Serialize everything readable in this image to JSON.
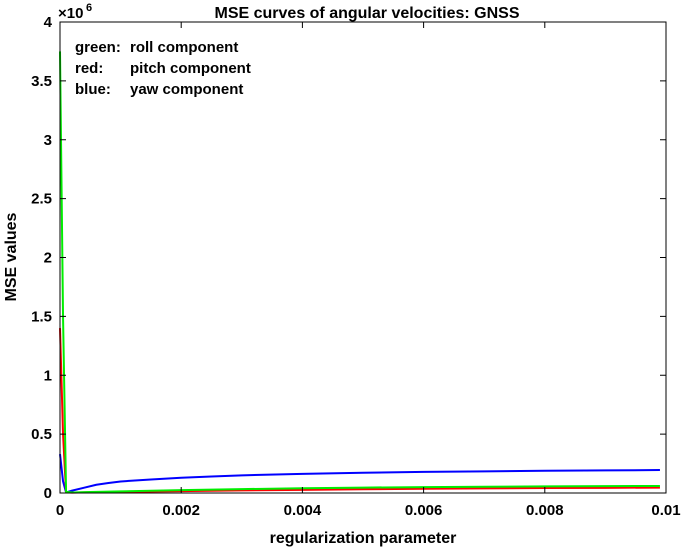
{
  "chart_data": {
    "type": "line",
    "title": "MSE curves of angular velocities: GNSS",
    "xlabel": "regularization parameter",
    "ylabel": "MSE values",
    "xlim": [
      0,
      0.01
    ],
    "ylim": [
      0,
      4000000
    ],
    "y_exponent_label": "×10",
    "y_exponent_power": "6",
    "grid": false,
    "xticks": [
      {
        "value": 0,
        "label": "0"
      },
      {
        "value": 0.002,
        "label": "0.002"
      },
      {
        "value": 0.004,
        "label": "0.004"
      },
      {
        "value": 0.006,
        "label": "0.006"
      },
      {
        "value": 0.008,
        "label": "0.008"
      },
      {
        "value": 0.01,
        "label": "0.01"
      }
    ],
    "yticks": [
      {
        "value": 0,
        "label": "0"
      },
      {
        "value": 500000,
        "label": "0.5"
      },
      {
        "value": 1000000,
        "label": "1"
      },
      {
        "value": 1500000,
        "label": "1.5"
      },
      {
        "value": 2000000,
        "label": "2"
      },
      {
        "value": 2500000,
        "label": "2.5"
      },
      {
        "value": 3000000,
        "label": "3"
      },
      {
        "value": 3500000,
        "label": "3.5"
      },
      {
        "value": 4000000,
        "label": "4"
      }
    ],
    "annotations": [
      {
        "name": "green",
        "prefix": "green:",
        "text": "roll component"
      },
      {
        "name": "red",
        "prefix": "red:",
        "text": "pitch component"
      },
      {
        "name": "blue",
        "prefix": "blue:",
        "text": "yaw component"
      }
    ],
    "series": [
      {
        "name": "yaw component",
        "color": "#0000ff",
        "x": [
          0,
          5e-05,
          0.0001,
          0.0002,
          0.0004,
          0.0006,
          0.0008,
          0.001,
          0.0015,
          0.002,
          0.0025,
          0.003,
          0.004,
          0.005,
          0.006,
          0.007,
          0.008,
          0.009,
          0.0099
        ],
        "y": [
          330000,
          100000,
          5000,
          20000,
          45000,
          70000,
          85000,
          98000,
          115000,
          130000,
          140000,
          150000,
          162000,
          172000,
          179000,
          184000,
          189000,
          192000,
          195000
        ]
      },
      {
        "name": "pitch component",
        "color": "#ff0000",
        "x": [
          0,
          5e-05,
          0.0001,
          0.0002,
          0.0005,
          0.001,
          0.002,
          0.003,
          0.004,
          0.005,
          0.006,
          0.007,
          0.008,
          0.009,
          0.0099
        ],
        "y": [
          1400000,
          500000,
          5000,
          3000,
          6000,
          10000,
          16000,
          22000,
          27000,
          32000,
          36000,
          39000,
          42000,
          44000,
          46000
        ]
      },
      {
        "name": "roll component",
        "color": "#00ee00",
        "x": [
          0,
          5e-05,
          0.0001,
          0.0002,
          0.0005,
          0.001,
          0.002,
          0.003,
          0.004,
          0.005,
          0.006,
          0.007,
          0.008,
          0.009,
          0.0099
        ],
        "y": [
          3750000,
          1500000,
          10000,
          4000,
          8000,
          14000,
          24000,
          33000,
          40000,
          46000,
          50000,
          53000,
          56000,
          58000,
          60000
        ]
      }
    ]
  }
}
